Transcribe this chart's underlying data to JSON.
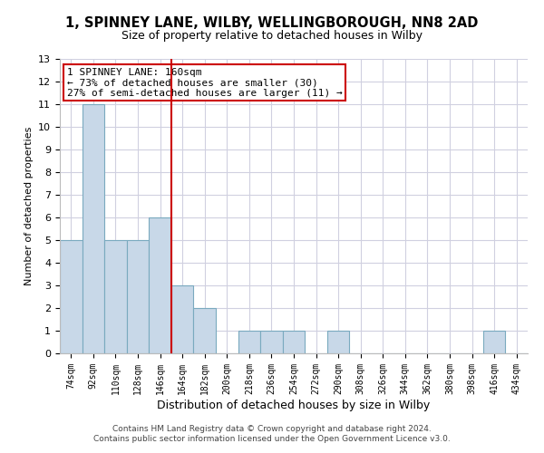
{
  "title1": "1, SPINNEY LANE, WILBY, WELLINGBOROUGH, NN8 2AD",
  "title2": "Size of property relative to detached houses in Wilby",
  "xlabel": "Distribution of detached houses by size in Wilby",
  "ylabel": "Number of detached properties",
  "categories": [
    "74sqm",
    "92sqm",
    "110sqm",
    "128sqm",
    "146sqm",
    "164sqm",
    "182sqm",
    "200sqm",
    "218sqm",
    "236sqm",
    "254sqm",
    "272sqm",
    "290sqm",
    "308sqm",
    "326sqm",
    "344sqm",
    "362sqm",
    "380sqm",
    "398sqm",
    "416sqm",
    "434sqm"
  ],
  "values": [
    5,
    11,
    5,
    5,
    6,
    3,
    2,
    0,
    1,
    1,
    1,
    0,
    1,
    0,
    0,
    0,
    0,
    0,
    0,
    1,
    0
  ],
  "bar_color": "#c8d8e8",
  "bar_edge_color": "#7aaabf",
  "vline_color": "#cc0000",
  "vline_x_index": 5,
  "ylim": [
    0,
    13
  ],
  "yticks": [
    0,
    1,
    2,
    3,
    4,
    5,
    6,
    7,
    8,
    9,
    10,
    11,
    12,
    13
  ],
  "annotation_line1": "1 SPINNEY LANE: 160sqm",
  "annotation_line2": "← 73% of detached houses are smaller (30)",
  "annotation_line3": "27% of semi-detached houses are larger (11) →",
  "annotation_box_color": "#cc0000",
  "footer1": "Contains HM Land Registry data © Crown copyright and database right 2024.",
  "footer2": "Contains public sector information licensed under the Open Government Licence v3.0.",
  "bg_color": "#ffffff",
  "grid_color": "#d0d0e0",
  "title1_fontsize": 10.5,
  "title2_fontsize": 9,
  "ylabel_fontsize": 8,
  "xlabel_fontsize": 9,
  "tick_fontsize": 7,
  "annot_fontsize": 8
}
